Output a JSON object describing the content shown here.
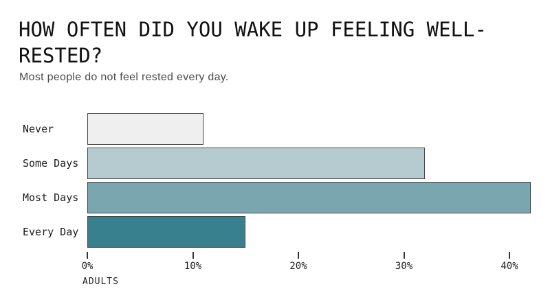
{
  "header": {
    "title": "HOW OFTEN DID YOU WAKE UP FEELING WELL-RESTED?",
    "subtitle": "Most people do not feel rested every day."
  },
  "chart_data": {
    "type": "bar",
    "orientation": "horizontal",
    "title": "HOW OFTEN DID YOU WAKE UP FEELING WELL-RESTED?",
    "subtitle": "Most people do not feel rested every day.",
    "categories": [
      "Never",
      "Some Days",
      "Most Days",
      "Every Day"
    ],
    "values": [
      11,
      32,
      42,
      15
    ],
    "unit": "percent",
    "xlabel": "ADULTS",
    "x_ticks": [
      0,
      10,
      20,
      30,
      40
    ],
    "x_tick_labels": [
      "0%",
      "10%",
      "20%",
      "30%",
      "40%"
    ],
    "xlim": [
      0,
      42
    ],
    "grid": false,
    "legend": "none",
    "bar_colors": [
      "#efefef",
      "#b6cbd0",
      "#7aa6b0",
      "#38808d"
    ],
    "bar_border_color": "#454545",
    "background_color": "#ffffff",
    "title_color": "#111111",
    "subtitle_color": "#4a4a4a"
  }
}
